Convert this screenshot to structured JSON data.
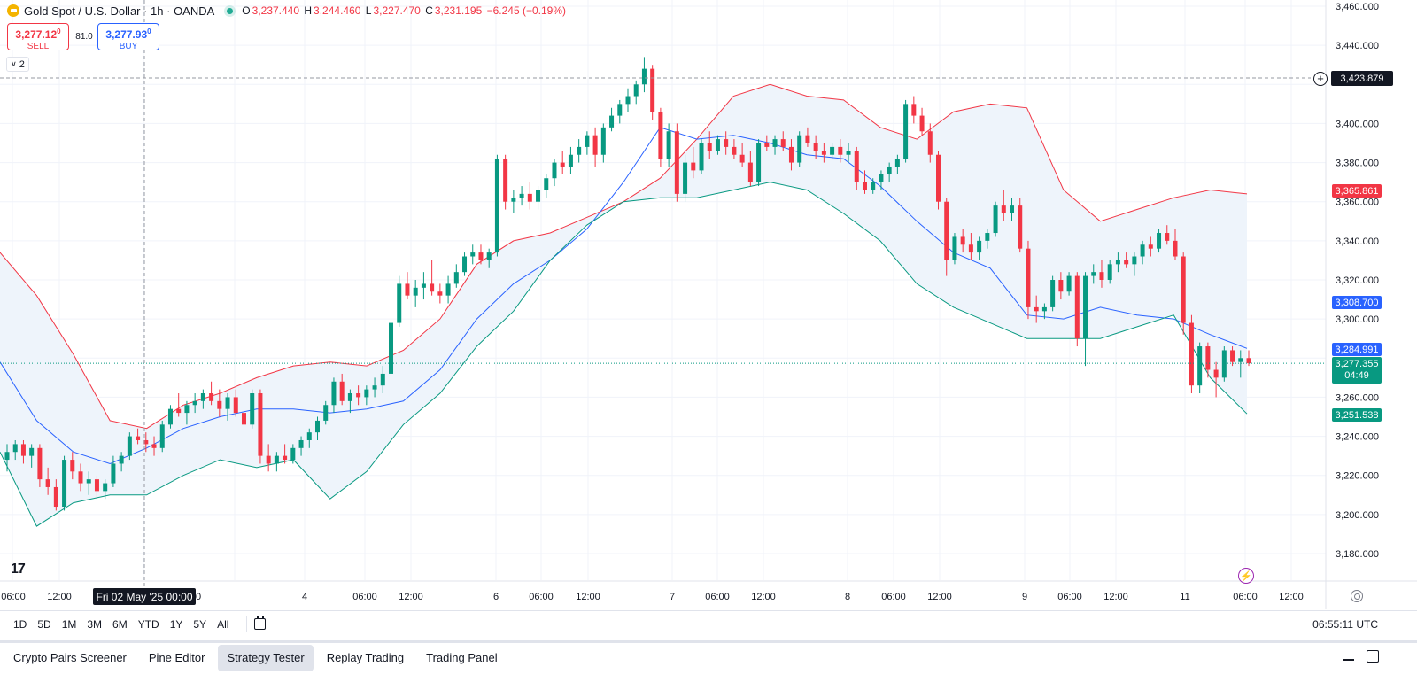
{
  "legend": {
    "symbol": "Gold Spot / U.S. Dollar · 1h · OANDA",
    "o_label": "O",
    "o_value": "3,237.440",
    "h_label": "H",
    "h_value": "3,244.460",
    "l_label": "L",
    "l_value": "3,227.470",
    "c_label": "C",
    "c_value": "3,231.195",
    "change": "−6.245 (−0.19%)"
  },
  "trade": {
    "sell_price": "3,277.12",
    "sell_sup": "0",
    "sell_label": "SELL",
    "spread": "81.0",
    "buy_price": "3,277.93",
    "buy_sup": "0",
    "buy_label": "BUY"
  },
  "indicators_collapsed": "2",
  "crosshair": {
    "date_label": "Fri 02 May '25   00:00",
    "price_label": "3,423.879"
  },
  "price_axis": {
    "ticks": [
      "3,460.000",
      "3,440.000",
      "3,400.000",
      "3,380.000",
      "3,360.000",
      "3,340.000",
      "3,320.000",
      "3,300.000",
      "3,260.000",
      "3,240.000",
      "3,220.000",
      "3,200.000",
      "3,180.000"
    ],
    "badge_upper": "3,365.861",
    "badge_basis": "3,308.700",
    "badge_basis2": "3,284.991",
    "badge_current": "3,277.355",
    "badge_countdown": "04:49",
    "badge_lower": "3,251.538"
  },
  "time_axis": {
    "labels": [
      "06:00",
      "12:00",
      "4",
      "06:00",
      "12:00",
      "6",
      "06:00",
      "12:00",
      "7",
      "06:00",
      "12:00",
      "8",
      "06:00",
      "12:00",
      "9",
      "06:00",
      "12:00",
      "11",
      "06:00",
      "12:00"
    ],
    "stub": "0"
  },
  "ranges": [
    "1D",
    "5D",
    "1M",
    "3M",
    "6M",
    "YTD",
    "1Y",
    "5Y",
    "All"
  ],
  "clock": "06:55:11 UTC",
  "tabs": [
    "Crypto Pairs Screener",
    "Pine Editor",
    "Strategy Tester",
    "Replay Trading",
    "Trading Panel"
  ],
  "active_tab": "Strategy Tester",
  "colors": {
    "up": "#089981",
    "down": "#f23645",
    "basis": "#2962ff",
    "upper": "#f23645",
    "lower": "#089981",
    "fill": "#eef4fb"
  },
  "icons": [
    "gold-icon",
    "chevron-down-icon",
    "tradingview-logo-icon",
    "lightning-icon",
    "settings-icon",
    "calendar-range-icon",
    "plus-circle-icon",
    "minimize-icon",
    "maximize-icon"
  ],
  "chart_data": {
    "type": "candlestick",
    "title": "Gold Spot / U.S. Dollar · 1h · OANDA",
    "ylim": [
      3170,
      3460
    ],
    "candles": [
      [
        3228,
        3236,
        3222,
        3232
      ],
      [
        3232,
        3238,
        3228,
        3236
      ],
      [
        3236,
        3238,
        3226,
        3230
      ],
      [
        3230,
        3236,
        3224,
        3234
      ],
      [
        3234,
        3236,
        3214,
        3218
      ],
      [
        3218,
        3224,
        3210,
        3214
      ],
      [
        3214,
        3218,
        3202,
        3204
      ],
      [
        3204,
        3230,
        3202,
        3228
      ],
      [
        3228,
        3232,
        3218,
        3222
      ],
      [
        3222,
        3226,
        3212,
        3216
      ],
      [
        3216,
        3222,
        3210,
        3218
      ],
      [
        3218,
        3220,
        3208,
        3212
      ],
      [
        3212,
        3218,
        3208,
        3216
      ],
      [
        3216,
        3230,
        3214,
        3226
      ],
      [
        3226,
        3232,
        3222,
        3230
      ],
      [
        3230,
        3242,
        3228,
        3240
      ],
      [
        3240,
        3244,
        3236,
        3238
      ],
      [
        3238,
        3242,
        3232,
        3236
      ],
      [
        3236,
        3240,
        3230,
        3234
      ],
      [
        3234,
        3248,
        3232,
        3246
      ],
      [
        3246,
        3256,
        3244,
        3254
      ],
      [
        3254,
        3262,
        3250,
        3252
      ],
      [
        3252,
        3258,
        3246,
        3256
      ],
      [
        3256,
        3262,
        3252,
        3258
      ],
      [
        3258,
        3264,
        3254,
        3262
      ],
      [
        3262,
        3268,
        3256,
        3258
      ],
      [
        3258,
        3264,
        3250,
        3254
      ],
      [
        3254,
        3262,
        3248,
        3260
      ],
      [
        3260,
        3264,
        3250,
        3252
      ],
      [
        3252,
        3256,
        3242,
        3246
      ],
      [
        3246,
        3264,
        3244,
        3262
      ],
      [
        3262,
        3264,
        3226,
        3230
      ],
      [
        3230,
        3236,
        3222,
        3226
      ],
      [
        3226,
        3232,
        3222,
        3230
      ],
      [
        3230,
        3236,
        3226,
        3228
      ],
      [
        3228,
        3236,
        3226,
        3234
      ],
      [
        3234,
        3240,
        3230,
        3238
      ],
      [
        3238,
        3244,
        3234,
        3242
      ],
      [
        3242,
        3250,
        3238,
        3248
      ],
      [
        3248,
        3258,
        3246,
        3256
      ],
      [
        3256,
        3270,
        3252,
        3268
      ],
      [
        3268,
        3272,
        3256,
        3258
      ],
      [
        3258,
        3264,
        3252,
        3262
      ],
      [
        3262,
        3266,
        3256,
        3260
      ],
      [
        3260,
        3266,
        3256,
        3264
      ],
      [
        3264,
        3270,
        3260,
        3266
      ],
      [
        3266,
        3276,
        3262,
        3272
      ],
      [
        3272,
        3300,
        3270,
        3298
      ],
      [
        3298,
        3322,
        3296,
        3318
      ],
      [
        3318,
        3324,
        3310,
        3312
      ],
      [
        3312,
        3320,
        3306,
        3316
      ],
      [
        3316,
        3324,
        3310,
        3318
      ],
      [
        3318,
        3330,
        3312,
        3314
      ],
      [
        3314,
        3318,
        3308,
        3312
      ],
      [
        3312,
        3322,
        3308,
        3318
      ],
      [
        3318,
        3328,
        3316,
        3324
      ],
      [
        3324,
        3334,
        3322,
        3332
      ],
      [
        3332,
        3338,
        3328,
        3334
      ],
      [
        3334,
        3338,
        3328,
        3330
      ],
      [
        3330,
        3336,
        3326,
        3334
      ],
      [
        3334,
        3384,
        3332,
        3382
      ],
      [
        3382,
        3384,
        3356,
        3360
      ],
      [
        3360,
        3366,
        3354,
        3362
      ],
      [
        3362,
        3368,
        3358,
        3364
      ],
      [
        3364,
        3370,
        3356,
        3360
      ],
      [
        3360,
        3368,
        3356,
        3366
      ],
      [
        3366,
        3374,
        3362,
        3372
      ],
      [
        3372,
        3382,
        3368,
        3380
      ],
      [
        3380,
        3386,
        3374,
        3378
      ],
      [
        3378,
        3388,
        3374,
        3384
      ],
      [
        3384,
        3392,
        3380,
        3388
      ],
      [
        3388,
        3396,
        3384,
        3394
      ],
      [
        3394,
        3398,
        3378,
        3384
      ],
      [
        3384,
        3400,
        3380,
        3398
      ],
      [
        3398,
        3408,
        3396,
        3404
      ],
      [
        3404,
        3412,
        3400,
        3410
      ],
      [
        3410,
        3418,
        3406,
        3414
      ],
      [
        3414,
        3422,
        3410,
        3420
      ],
      [
        3420,
        3434,
        3416,
        3428
      ],
      [
        3428,
        3430,
        3402,
        3406
      ],
      [
        3406,
        3408,
        3378,
        3382
      ],
      [
        3382,
        3400,
        3378,
        3396
      ],
      [
        3396,
        3400,
        3360,
        3364
      ],
      [
        3364,
        3384,
        3360,
        3380
      ],
      [
        3380,
        3388,
        3372,
        3376
      ],
      [
        3376,
        3392,
        3374,
        3390
      ],
      [
        3390,
        3396,
        3382,
        3386
      ],
      [
        3386,
        3394,
        3384,
        3392
      ],
      [
        3392,
        3396,
        3384,
        3388
      ],
      [
        3388,
        3392,
        3382,
        3384
      ],
      [
        3384,
        3390,
        3378,
        3380
      ],
      [
        3380,
        3386,
        3368,
        3370
      ],
      [
        3370,
        3392,
        3368,
        3390
      ],
      [
        3390,
        3394,
        3386,
        3388
      ],
      [
        3388,
        3394,
        3384,
        3392
      ],
      [
        3392,
        3396,
        3386,
        3388
      ],
      [
        3388,
        3392,
        3376,
        3380
      ],
      [
        3380,
        3396,
        3378,
        3394
      ],
      [
        3394,
        3398,
        3388,
        3390
      ],
      [
        3390,
        3394,
        3382,
        3386
      ],
      [
        3386,
        3390,
        3380,
        3384
      ],
      [
        3384,
        3390,
        3382,
        3388
      ],
      [
        3388,
        3392,
        3380,
        3384
      ],
      [
        3384,
        3390,
        3380,
        3386
      ],
      [
        3386,
        3388,
        3366,
        3370
      ],
      [
        3370,
        3376,
        3364,
        3366
      ],
      [
        3366,
        3372,
        3364,
        3370
      ],
      [
        3370,
        3376,
        3366,
        3374
      ],
      [
        3374,
        3380,
        3370,
        3378
      ],
      [
        3378,
        3384,
        3374,
        3382
      ],
      [
        3382,
        3412,
        3380,
        3410
      ],
      [
        3410,
        3414,
        3400,
        3404
      ],
      [
        3404,
        3408,
        3394,
        3396
      ],
      [
        3396,
        3400,
        3380,
        3384
      ],
      [
        3384,
        3386,
        3356,
        3360
      ],
      [
        3360,
        3362,
        3322,
        3330
      ],
      [
        3330,
        3344,
        3328,
        3342
      ],
      [
        3342,
        3346,
        3334,
        3338
      ],
      [
        3338,
        3344,
        3330,
        3334
      ],
      [
        3334,
        3342,
        3330,
        3340
      ],
      [
        3340,
        3346,
        3336,
        3344
      ],
      [
        3344,
        3360,
        3342,
        3358
      ],
      [
        3358,
        3366,
        3350,
        3354
      ],
      [
        3354,
        3362,
        3350,
        3358
      ],
      [
        3358,
        3362,
        3334,
        3336
      ],
      [
        3336,
        3340,
        3300,
        3306
      ],
      [
        3306,
        3312,
        3298,
        3304
      ],
      [
        3304,
        3308,
        3300,
        3306
      ],
      [
        3306,
        3322,
        3304,
        3320
      ],
      [
        3320,
        3324,
        3310,
        3314
      ],
      [
        3314,
        3324,
        3312,
        3322
      ],
      [
        3322,
        3324,
        3286,
        3290
      ],
      [
        3290,
        3324,
        3276,
        3322
      ],
      [
        3322,
        3328,
        3318,
        3324
      ],
      [
        3324,
        3330,
        3316,
        3320
      ],
      [
        3320,
        3330,
        3318,
        3328
      ],
      [
        3328,
        3334,
        3324,
        3330
      ],
      [
        3330,
        3334,
        3326,
        3328
      ],
      [
        3328,
        3334,
        3322,
        3332
      ],
      [
        3332,
        3340,
        3328,
        3338
      ],
      [
        3338,
        3342,
        3332,
        3336
      ],
      [
        3336,
        3346,
        3334,
        3344
      ],
      [
        3344,
        3348,
        3338,
        3340
      ],
      [
        3340,
        3346,
        3330,
        3332
      ],
      [
        3332,
        3334,
        3292,
        3298
      ],
      [
        3298,
        3302,
        3262,
        3266
      ],
      [
        3266,
        3288,
        3262,
        3286
      ],
      [
        3286,
        3288,
        3270,
        3274
      ],
      [
        3274,
        3278,
        3260,
        3270
      ],
      [
        3270,
        3286,
        3268,
        3284
      ],
      [
        3284,
        3286,
        3276,
        3278
      ],
      [
        3278,
        3284,
        3270,
        3280
      ],
      [
        3280,
        3284,
        3276,
        3277.355
      ]
    ],
    "bollinger": {
      "upper": [
        3334,
        3312,
        3282,
        3248,
        3244,
        3256,
        3262,
        3270,
        3276,
        3278,
        3276,
        3284,
        3300,
        3328,
        3340,
        3344,
        3352,
        3360,
        3372,
        3392,
        3414,
        3420,
        3414,
        3412,
        3398,
        3392,
        3406,
        3410,
        3408,
        3366,
        3350,
        3356,
        3362,
        3366,
        3364
      ],
      "basis": [
        3278,
        3248,
        3232,
        3226,
        3234,
        3244,
        3250,
        3254,
        3254,
        3252,
        3254,
        3258,
        3274,
        3300,
        3318,
        3330,
        3346,
        3370,
        3398,
        3392,
        3394,
        3390,
        3384,
        3382,
        3368,
        3350,
        3334,
        3326,
        3302,
        3300,
        3306,
        3302,
        3300,
        3292,
        3285
      ],
      "lower": [
        3232,
        3194,
        3206,
        3210,
        3210,
        3220,
        3228,
        3224,
        3228,
        3208,
        3222,
        3246,
        3262,
        3286,
        3304,
        3330,
        3348,
        3360,
        3362,
        3362,
        3366,
        3370,
        3366,
        3354,
        3340,
        3318,
        3306,
        3298,
        3290,
        3290,
        3290,
        3296,
        3302,
        3270,
        3251.5
      ]
    }
  }
}
